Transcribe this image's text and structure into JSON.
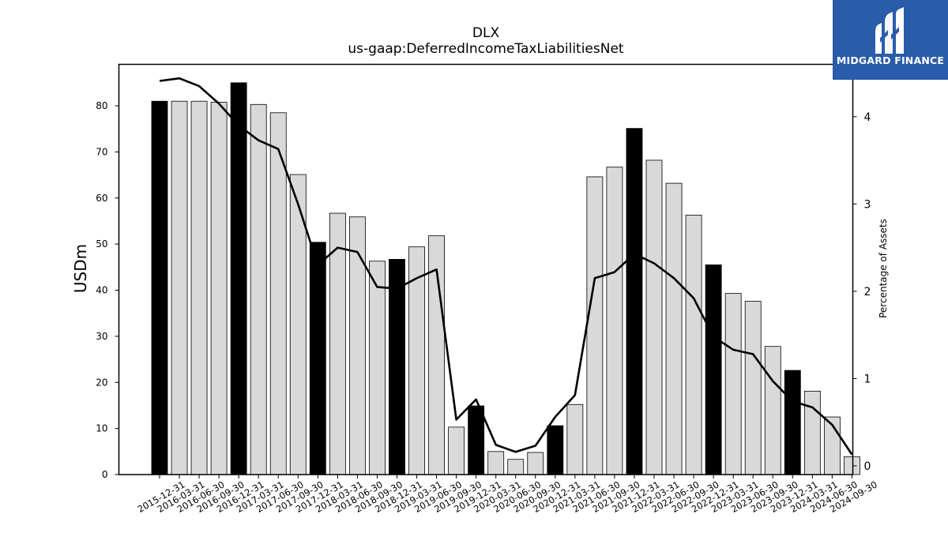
{
  "chart_data": {
    "type": "bar",
    "title": "DLX",
    "subtitle": "us-gaap:DeferredIncomeTaxLiabilitiesNet",
    "ylabel": "USDm",
    "y2label": "Percentage of Assets",
    "ylim": [
      0,
      89
    ],
    "y2lim": [
      -0.1,
      4.6
    ],
    "yticks": [
      0,
      10,
      20,
      30,
      40,
      50,
      60,
      70,
      80
    ],
    "y2ticks": [
      0,
      1,
      2,
      3,
      4
    ],
    "categories": [
      "2015-12-31",
      "2016-03-31",
      "2016-06-30",
      "2016-09-30",
      "2016-12-31",
      "2017-03-31",
      "2017-06-30",
      "2017-09-30",
      "2017-12-31",
      "2018-03-31",
      "2018-06-30",
      "2018-09-30",
      "2018-12-31",
      "2019-03-31",
      "2019-06-30",
      "2019-09-30",
      "2019-12-31",
      "2020-03-31",
      "2020-06-30",
      "2020-09-30",
      "2020-12-31",
      "2021-03-31",
      "2021-06-30",
      "2021-09-30",
      "2021-12-31",
      "2022-03-31",
      "2022-06-30",
      "2022-09-30",
      "2022-12-31",
      "2023-03-31",
      "2023-06-30",
      "2023-09-30",
      "2023-12-31",
      "2024-03-31",
      "2024-06-30",
      "2024-09-30"
    ],
    "series": [
      {
        "kind": "bar",
        "values": [
          81.0,
          81.0,
          81.0,
          80.8,
          85.0,
          80.3,
          78.5,
          65.1,
          50.4,
          56.7,
          55.9,
          46.3,
          46.7,
          49.4,
          51.8,
          10.3,
          14.9,
          5.0,
          3.3,
          4.8,
          10.6,
          15.2,
          64.6,
          66.7,
          75.1,
          68.2,
          63.2,
          56.3,
          45.5,
          39.3,
          37.6,
          27.8,
          22.6,
          18.1,
          12.5,
          3.9
        ],
        "highlight_color": "#000000",
        "color": "#d9d9d9"
      },
      {
        "kind": "line",
        "axis": "right",
        "color": "#000000",
        "values": [
          4.41,
          4.44,
          4.35,
          4.15,
          3.9,
          3.73,
          3.63,
          3.0,
          2.3,
          2.5,
          2.45,
          2.05,
          2.03,
          2.15,
          2.25,
          0.53,
          0.76,
          0.24,
          0.16,
          0.23,
          0.56,
          0.81,
          2.15,
          2.22,
          2.43,
          2.32,
          2.15,
          1.92,
          1.48,
          1.33,
          1.28,
          0.97,
          0.74,
          0.67,
          0.47,
          0.13
        ]
      }
    ],
    "grid": false
  },
  "logo": {
    "text": "MIDGARD FINANCE"
  }
}
